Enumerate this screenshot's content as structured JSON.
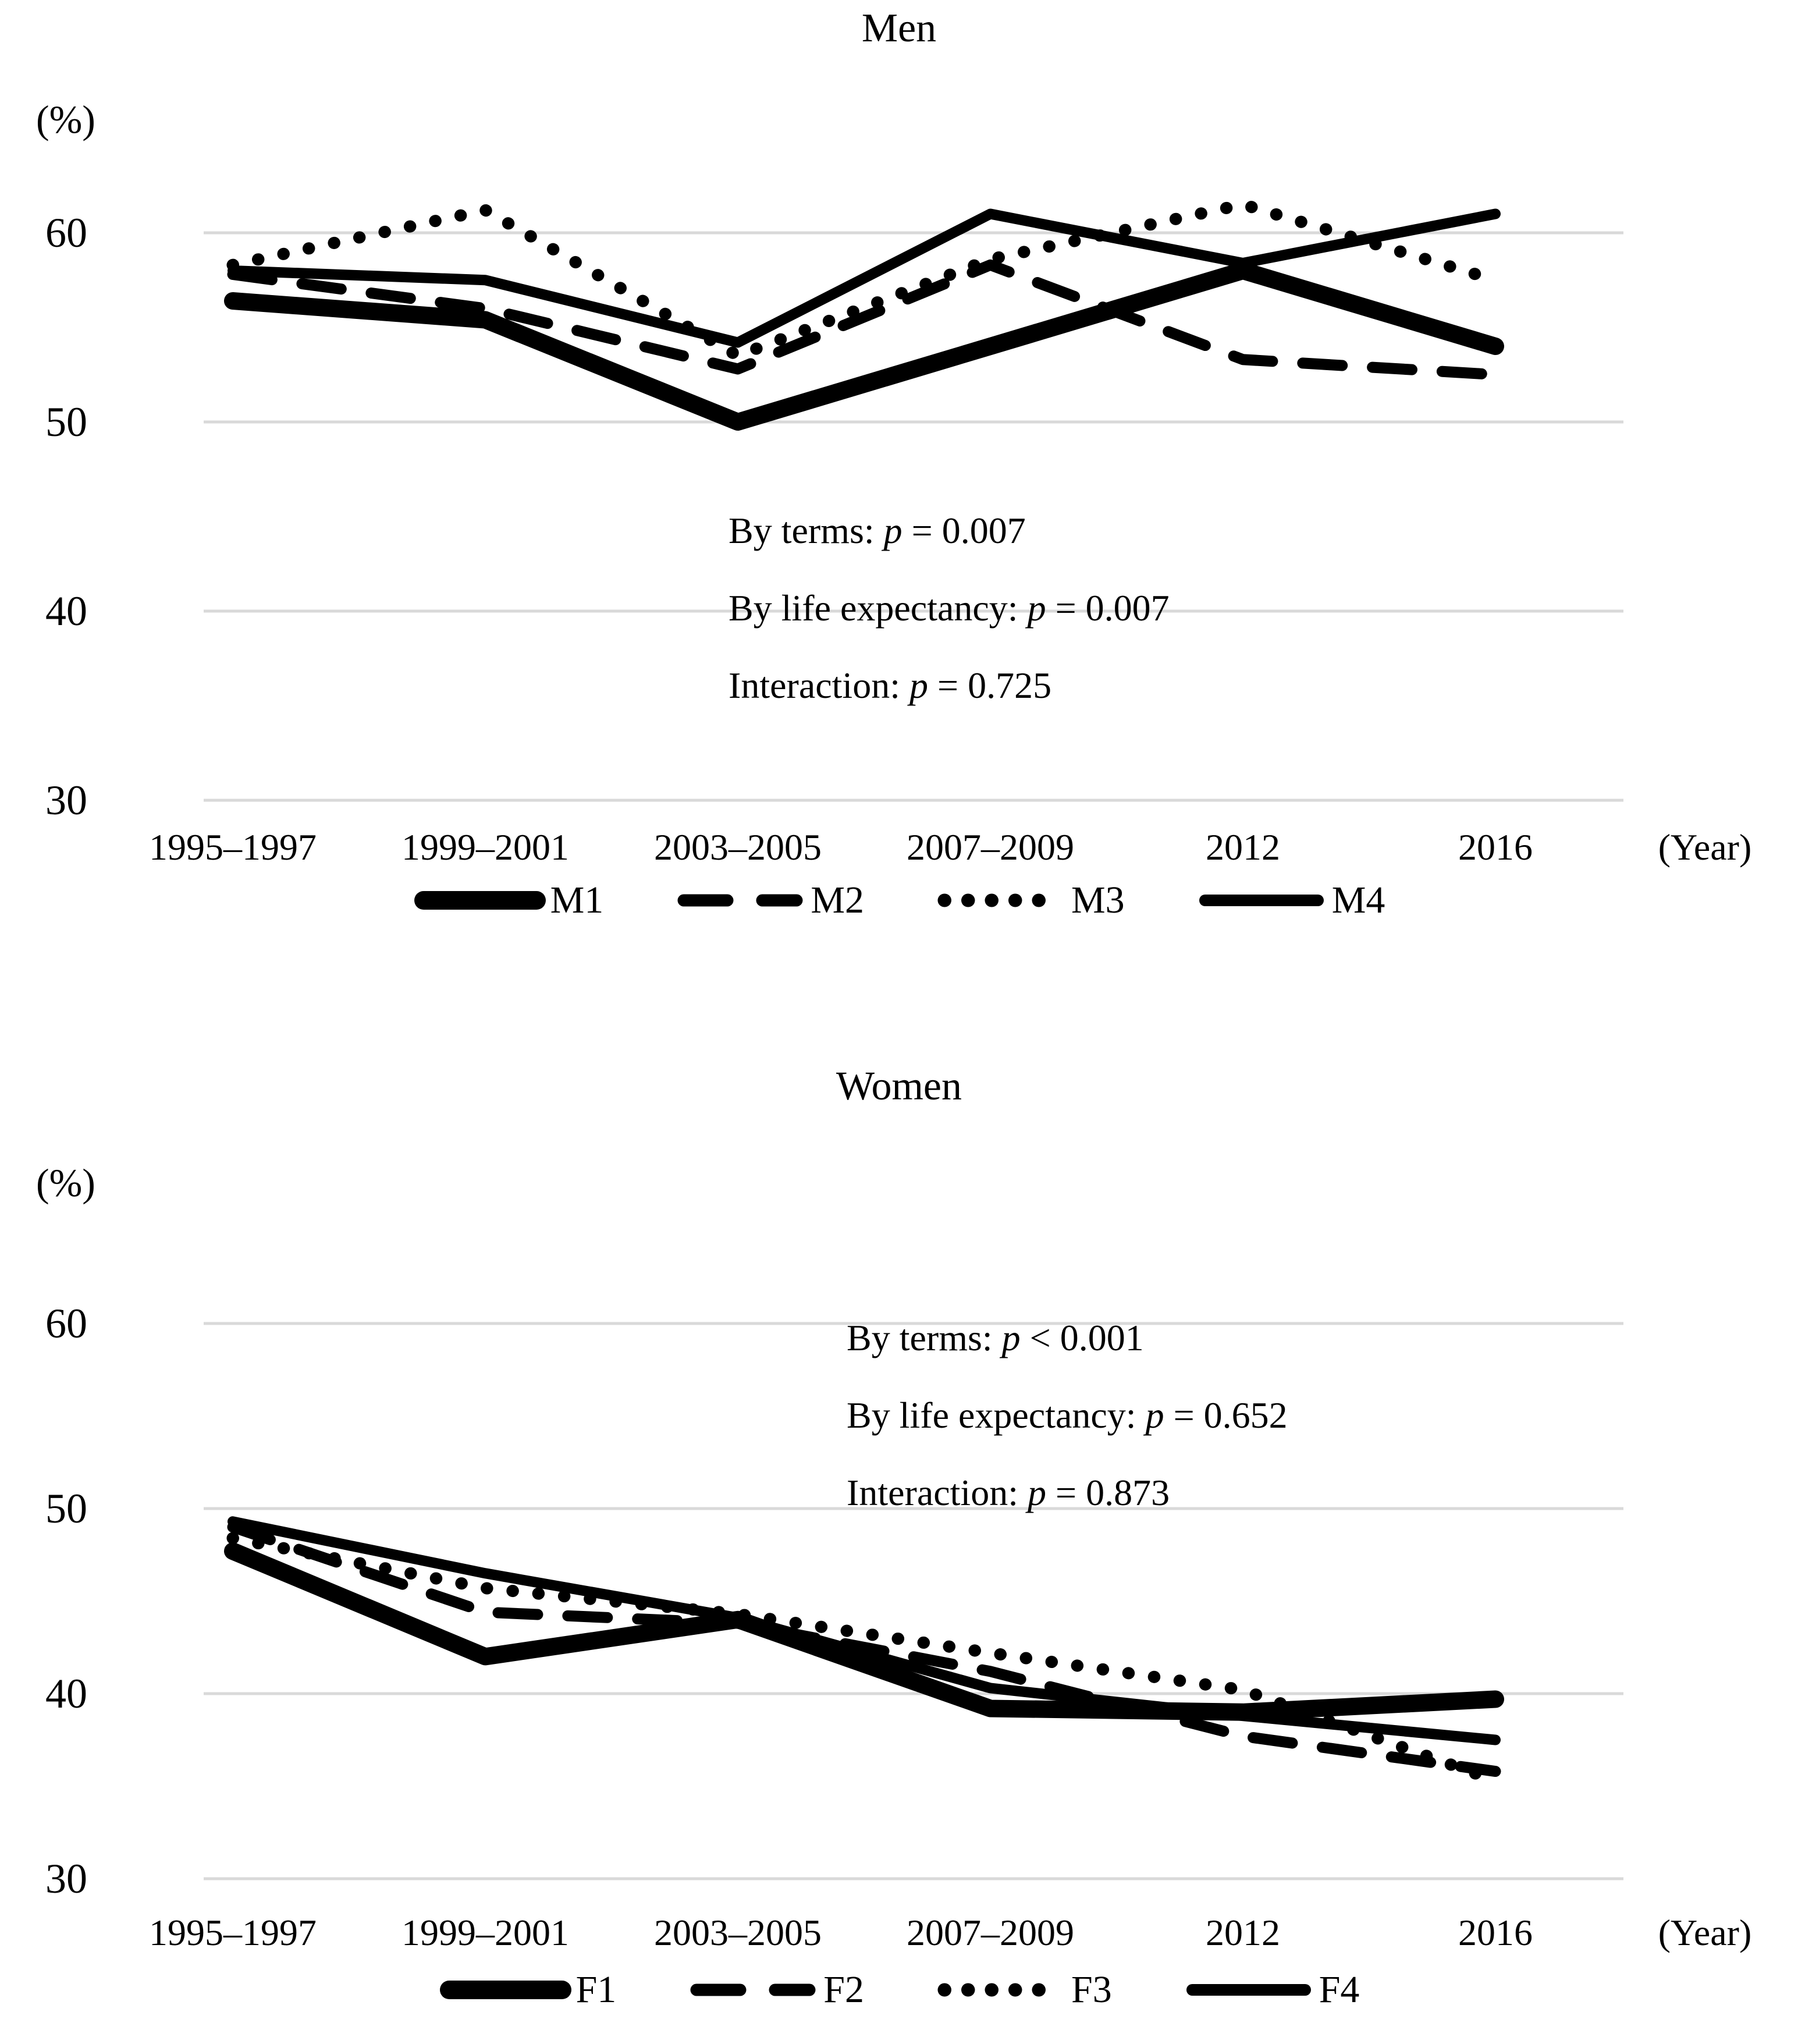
{
  "page": {
    "background_color": "#ffffff",
    "line_color": "#000000",
    "gridline_color": "#d9d9d9"
  },
  "chart_data": [
    {
      "type": "line",
      "title": "Men",
      "ylabel": "(%)",
      "xlabel": "(Year)",
      "categories": [
        "1995–1997",
        "1999–2001",
        "2003–2005",
        "2007–2009",
        "2012",
        "2016"
      ],
      "y_ticks": [
        30,
        40,
        50,
        60
      ],
      "ylim": [
        27,
        64
      ],
      "grid": "horizontal",
      "legend_position": "bottom",
      "series": [
        {
          "name": "M1",
          "style": "solid",
          "thickness": "extra-thick",
          "values": [
            56.4,
            55.4,
            50.0,
            54.0,
            58.0,
            54.0
          ]
        },
        {
          "name": "M2",
          "style": "dashed",
          "thickness": "medium",
          "values": [
            57.8,
            56.0,
            52.8,
            58.3,
            53.3,
            52.5
          ]
        },
        {
          "name": "M3",
          "style": "dotted",
          "thickness": "medium",
          "values": [
            58.3,
            61.2,
            53.5,
            58.6,
            61.5,
            57.5
          ]
        },
        {
          "name": "M4",
          "style": "solid",
          "thickness": "medium",
          "values": [
            58.0,
            57.5,
            54.2,
            61.0,
            58.4,
            61.0
          ]
        }
      ],
      "annotations": [
        {
          "label": "By terms: ",
          "p": "p",
          "value": " = 0.007"
        },
        {
          "label": "By life expectancy: ",
          "p": "p",
          "value": " = 0.007"
        },
        {
          "label": "Interaction: ",
          "p": "p",
          "value": " = 0.725"
        }
      ]
    },
    {
      "type": "line",
      "title": "Women",
      "ylabel": "(%)",
      "xlabel": "(Year)",
      "categories": [
        "1995–1997",
        "1999–2001",
        "2003–2005",
        "2007–2009",
        "2012",
        "2016"
      ],
      "y_ticks": [
        30,
        40,
        50,
        60
      ],
      "ylim": [
        27,
        64
      ],
      "grid": "horizontal",
      "legend_position": "bottom",
      "series": [
        {
          "name": "F1",
          "style": "solid",
          "thickness": "extra-thick",
          "values": [
            47.7,
            42.0,
            44.0,
            39.2,
            39.0,
            39.7
          ]
        },
        {
          "name": "F2",
          "style": "dashed",
          "thickness": "medium",
          "values": [
            49.0,
            44.4,
            43.8,
            41.2,
            37.7,
            35.8
          ]
        },
        {
          "name": "F3",
          "style": "dotted",
          "thickness": "medium",
          "values": [
            48.4,
            45.7,
            44.3,
            42.2,
            40.2,
            35.3
          ]
        },
        {
          "name": "F4",
          "style": "solid",
          "thickness": "medium",
          "values": [
            49.3,
            46.5,
            44.1,
            40.3,
            38.8,
            37.5
          ]
        }
      ],
      "annotations": [
        {
          "label": "By terms: ",
          "p": "p",
          "value": " < 0.001"
        },
        {
          "label": "By life expectancy: ",
          "p": "p",
          "value": " = 0.652"
        },
        {
          "label": "Interaction: ",
          "p": "p",
          "value": " = 0.873"
        }
      ]
    }
  ]
}
